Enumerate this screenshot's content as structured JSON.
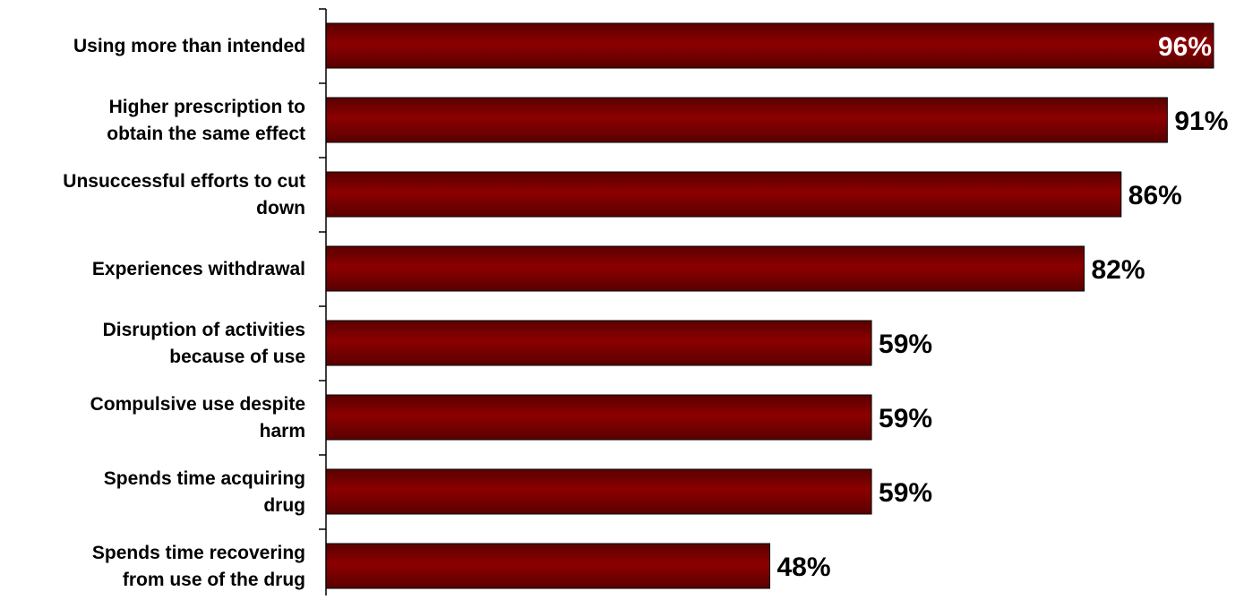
{
  "chart_data": {
    "type": "bar",
    "orientation": "horizontal",
    "categories": [
      [
        "Using more than intended"
      ],
      [
        "Higher prescription to",
        "obtain the same effect"
      ],
      [
        "Unsuccessful efforts to cut",
        "down"
      ],
      [
        "Experiences withdrawal"
      ],
      [
        "Disruption of activities",
        "because of  use"
      ],
      [
        "Compulsive use despite",
        "harm"
      ],
      [
        "Spends time acquiring",
        "drug"
      ],
      [
        "Spends time recovering",
        "from use of the drug"
      ]
    ],
    "values": [
      96,
      91,
      86,
      82,
      59,
      59,
      59,
      48
    ],
    "value_labels": [
      "96%",
      "91%",
      "86%",
      "82%",
      "59%",
      "59%",
      "59%",
      "48%"
    ],
    "xlim": [
      0,
      96
    ],
    "grid": false,
    "colors": {
      "bar_light": "#8c0000",
      "bar_dark": "#5a0000",
      "axis": "#000000"
    }
  }
}
